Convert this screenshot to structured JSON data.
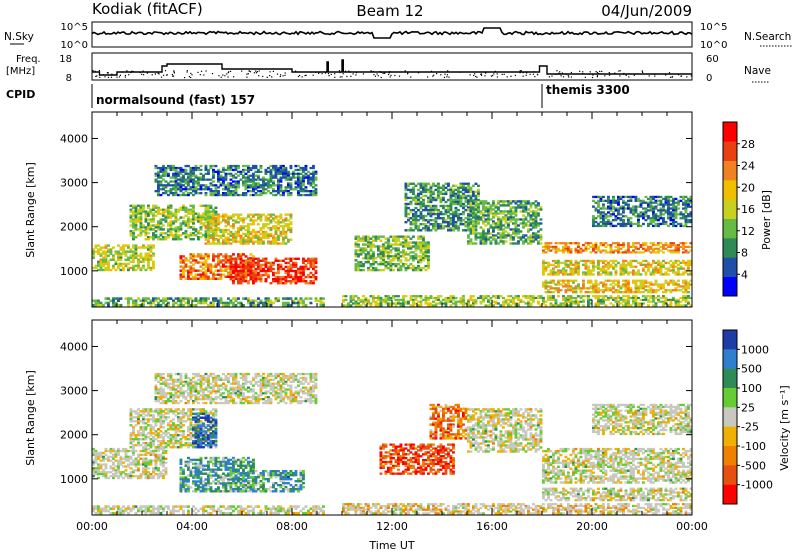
{
  "header": {
    "station": "Kodiak (fitACF)",
    "beam": "Beam 12",
    "date": "04/Jun/2009"
  },
  "nsky_panel": {
    "left_label": "N.Sky",
    "right_label": "N.Search",
    "left_ticks": [
      "10^5",
      "10^0"
    ],
    "right_ticks": [
      "10^5",
      "10^0"
    ]
  },
  "freq_panel": {
    "left_label_1": "Freq.",
    "left_label_2": "[MHz]",
    "right_label": "Nave",
    "left_ticks": [
      "18",
      "8"
    ],
    "right_ticks": [
      "60",
      "0"
    ]
  },
  "cpid": {
    "label": "CPID",
    "programs": [
      {
        "name": "normalsound (fast) 157",
        "start_hour": 0
      },
      {
        "name": "themis 3300",
        "start_hour": 18
      }
    ]
  },
  "colors": {
    "power": [
      "#0000ff",
      "#1f4fa8",
      "#2e8b57",
      "#66bb44",
      "#c8d020",
      "#f0c000",
      "#f08020",
      "#e84010",
      "#ff0000"
    ],
    "velocity": [
      "#1e3ca8",
      "#2f7fd0",
      "#2e8b57",
      "#66cc33",
      "#c8c8c0",
      "#f0b000",
      "#f08000",
      "#e85010",
      "#ff0000"
    ],
    "ground_scatter": "#c8c8c0"
  },
  "chart_data": [
    {
      "type": "heatmap",
      "quantity": "Power",
      "xlabel": "",
      "ylabel": "Slant Range [km]",
      "colorbar_label": "Power [dB]",
      "colorbar_ticks": [
        "28",
        "24",
        "20",
        "16",
        "12",
        "8",
        "4"
      ],
      "xlim": [
        0,
        24
      ],
      "ylim": [
        180,
        4600
      ],
      "y_ticks": [
        "1000",
        "2000",
        "3000",
        "4000"
      ],
      "data_gap_hours": [
        [
          9.3,
          10.0
        ]
      ],
      "echo_regions": [
        {
          "t0": 0.0,
          "t1": 9.3,
          "r0": 200,
          "r1": 400,
          "level": 0.35
        },
        {
          "t0": 0.0,
          "t1": 2.5,
          "r0": 1000,
          "r1": 1600,
          "level": 0.5
        },
        {
          "t0": 1.5,
          "t1": 5.0,
          "r0": 1700,
          "r1": 2500,
          "level": 0.4
        },
        {
          "t0": 3.5,
          "t1": 6.5,
          "r0": 800,
          "r1": 1400,
          "level": 0.75
        },
        {
          "t0": 5.5,
          "t1": 9.0,
          "r0": 700,
          "r1": 1300,
          "level": 0.85
        },
        {
          "t0": 4.5,
          "t1": 8.0,
          "r0": 1600,
          "r1": 2300,
          "level": 0.55
        },
        {
          "t0": 2.5,
          "t1": 9.0,
          "r0": 2700,
          "r1": 3400,
          "level": 0.25
        },
        {
          "t0": 10.0,
          "t1": 24.0,
          "r0": 200,
          "r1": 450,
          "level": 0.45
        },
        {
          "t0": 10.5,
          "t1": 13.5,
          "r0": 1000,
          "r1": 1800,
          "level": 0.4
        },
        {
          "t0": 12.5,
          "t1": 15.5,
          "r0": 1900,
          "r1": 3000,
          "level": 0.3
        },
        {
          "t0": 15.0,
          "t1": 18.0,
          "r0": 1600,
          "r1": 2600,
          "level": 0.35
        },
        {
          "t0": 18.0,
          "t1": 24.0,
          "r0": 1400,
          "r1": 1650,
          "level": 0.7
        },
        {
          "t0": 18.0,
          "t1": 24.0,
          "r0": 900,
          "r1": 1250,
          "level": 0.55
        },
        {
          "t0": 18.0,
          "t1": 24.0,
          "r0": 500,
          "r1": 800,
          "level": 0.6
        },
        {
          "t0": 20.0,
          "t1": 24.0,
          "r0": 2000,
          "r1": 2700,
          "level": 0.25
        }
      ]
    },
    {
      "type": "heatmap",
      "quantity": "Velocity",
      "xlabel": "Time UT",
      "ylabel": "Slant Range [km]",
      "colorbar_label": "Velocity [m s⁻¹]",
      "colorbar_ticks": [
        "1000",
        "500",
        "100",
        "25",
        "-25",
        "-100",
        "-500",
        "-1000"
      ],
      "xlim": [
        0,
        24
      ],
      "ylim": [
        180,
        4600
      ],
      "y_ticks": [
        "1000",
        "2000",
        "3000",
        "4000"
      ],
      "x_ticks": [
        "00:00",
        "04:00",
        "08:00",
        "12:00",
        "16:00",
        "20:00",
        "00:00"
      ],
      "data_gap_hours": [
        [
          9.3,
          10.0
        ]
      ],
      "echo_regions": [
        {
          "t0": 0.0,
          "t1": 9.3,
          "r0": 200,
          "r1": 400,
          "level": 0.5
        },
        {
          "t0": 0.0,
          "t1": 3.0,
          "r0": 1000,
          "r1": 1700,
          "level": 0.5
        },
        {
          "t0": 1.5,
          "t1": 5.0,
          "r0": 1700,
          "r1": 2600,
          "level": 0.5
        },
        {
          "t0": 3.5,
          "t1": 6.5,
          "r0": 700,
          "r1": 1500,
          "level": 0.3
        },
        {
          "t0": 5.5,
          "t1": 8.5,
          "r0": 700,
          "r1": 1200,
          "level": 0.28
        },
        {
          "t0": 4.0,
          "t1": 5.0,
          "r0": 1700,
          "r1": 2500,
          "level": 0.12
        },
        {
          "t0": 2.5,
          "t1": 9.0,
          "r0": 2700,
          "r1": 3400,
          "level": 0.5
        },
        {
          "t0": 10.0,
          "t1": 24.0,
          "r0": 200,
          "r1": 450,
          "level": 0.55
        },
        {
          "t0": 11.5,
          "t1": 14.5,
          "r0": 1100,
          "r1": 1800,
          "level": 0.85
        },
        {
          "t0": 13.5,
          "t1": 15.0,
          "r0": 1900,
          "r1": 2700,
          "level": 0.75
        },
        {
          "t0": 15.0,
          "t1": 18.0,
          "r0": 1600,
          "r1": 2600,
          "level": 0.5
        },
        {
          "t0": 18.0,
          "t1": 24.0,
          "r0": 900,
          "r1": 1700,
          "level": 0.5
        },
        {
          "t0": 18.0,
          "t1": 24.0,
          "r0": 500,
          "r1": 800,
          "level": 0.5
        },
        {
          "t0": 20.0,
          "t1": 24.0,
          "r0": 2000,
          "r1": 2700,
          "level": 0.5
        }
      ]
    }
  ]
}
